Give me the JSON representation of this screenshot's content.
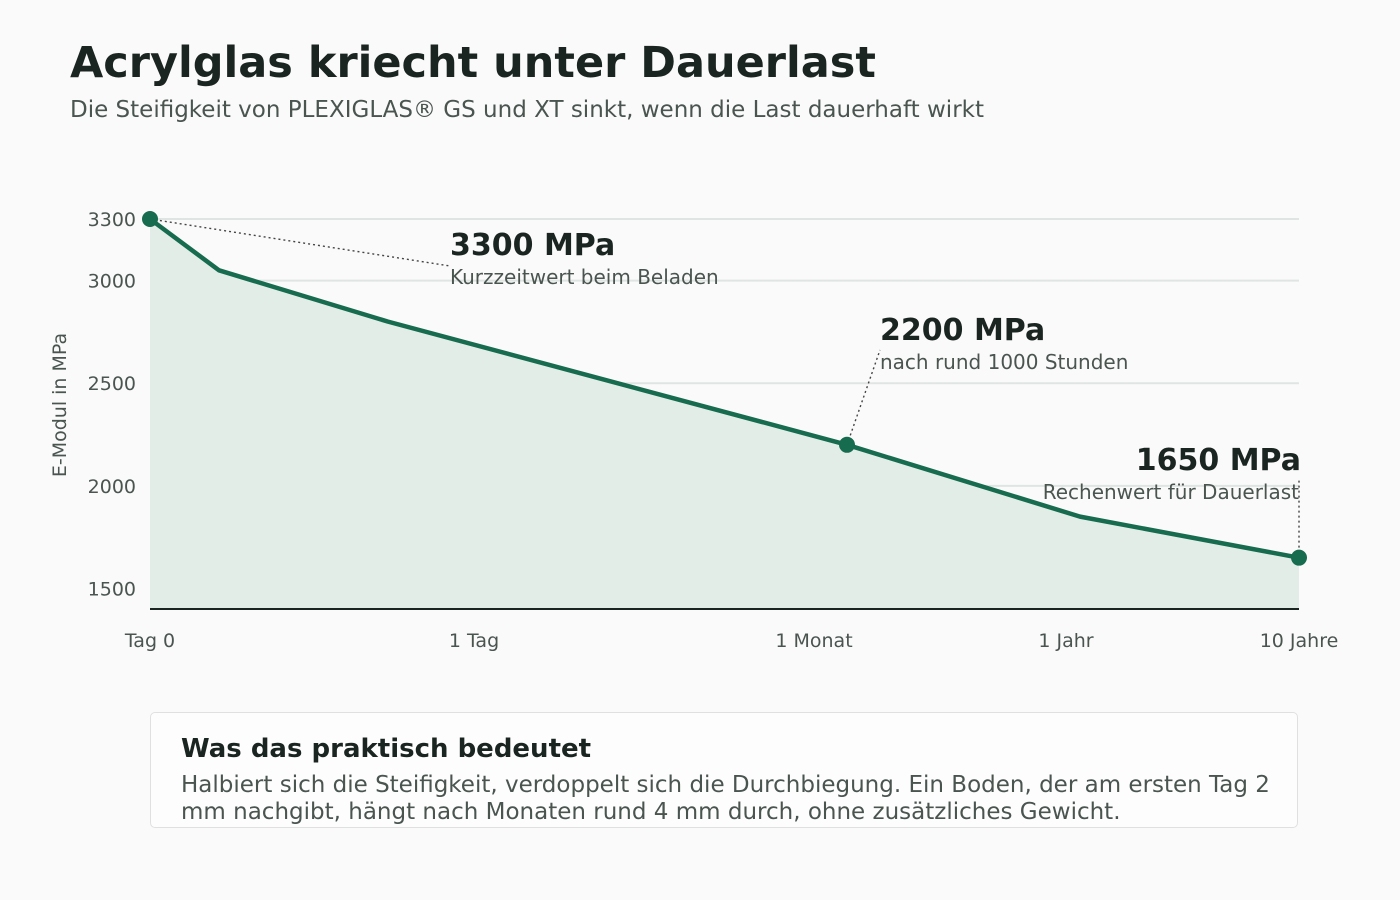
{
  "header": {
    "title": "Acrylglas kriecht unter Dauerlast",
    "subtitle": "Die Steifigkeit von PLEXIGLAS® GS und XT sinkt, wenn die Last dauerhaft wirkt"
  },
  "chart_data": {
    "type": "area",
    "ylabel": "E-Modul in MPa",
    "xlabel": "",
    "x_scale": "log-like",
    "x_ticks": [
      "Tag 0",
      "1 Tag",
      "1 Monat",
      "1 Jahr",
      "10 Jahre"
    ],
    "y_ticks": [
      1500,
      2000,
      2500,
      3000,
      3300
    ],
    "ylim": [
      1400,
      3300
    ],
    "grid": true,
    "series": [
      {
        "values": [
          {
            "x": "Tag 0",
            "y": 3300
          },
          {
            "x": "ca. 1 Stunde",
            "y": 3050
          },
          {
            "x": "ca. 1 Tag",
            "y": 2800
          },
          {
            "x": "ca. 1000 Stunden",
            "y": 2200
          },
          {
            "x": "ca. 1 Jahr",
            "y": 1850
          },
          {
            "x": "10 Jahre",
            "y": 1650
          }
        ]
      }
    ],
    "annotations": [
      {
        "value": "3300 MPa",
        "text": "Kurzzeitwert beim Beladen"
      },
      {
        "value": "2200 MPa",
        "text": "nach rund 1000 Stunden"
      },
      {
        "value": "1650 MPa",
        "text": "Rechenwert für Dauerlast"
      }
    ],
    "colors": {
      "line": "#176b4f",
      "area": "#e2ede8",
      "grid": "#dfe5e2"
    }
  },
  "card": {
    "title": "Was das praktisch bedeutet",
    "text": "Halbiert sich die Steifigkeit, verdoppelt sich die Durchbiegung. Ein Boden, der am ersten Tag 2 mm nachgibt, hängt nach Monaten rund 4 mm durch, ohne zusätzliches Gewicht."
  }
}
